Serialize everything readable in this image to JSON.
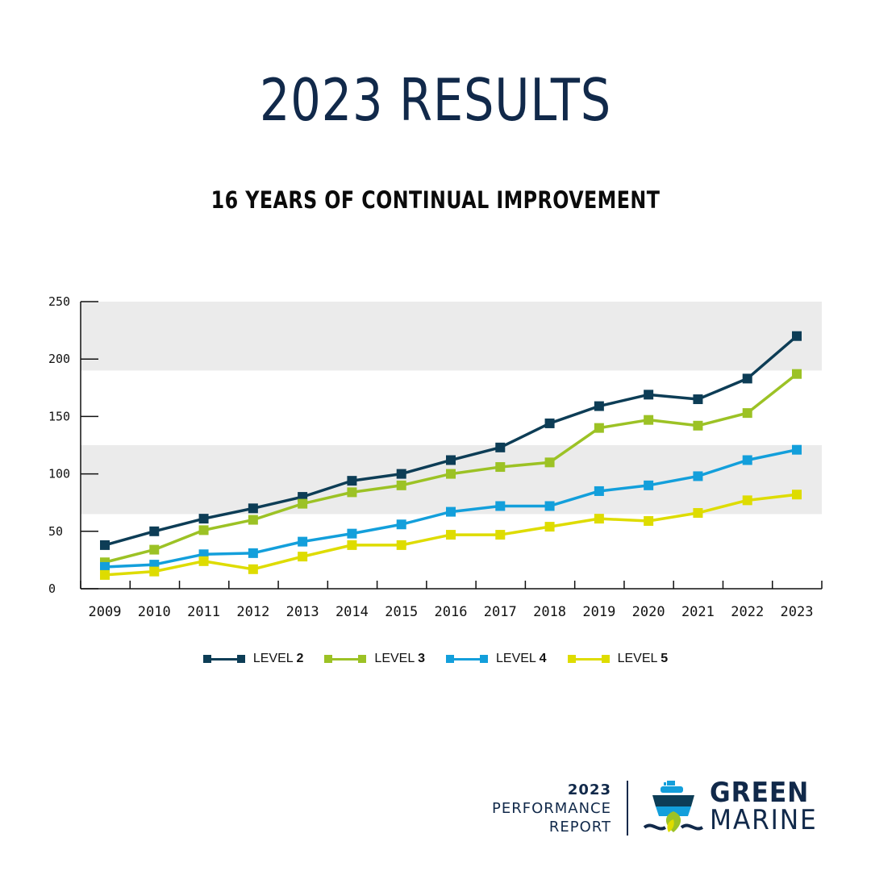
{
  "title": "2023 RESULTS",
  "subtitle": "16 YEARS OF CONTINUAL IMPROVEMENT",
  "chart_data": {
    "type": "line",
    "title": "16 YEARS OF CONTINUAL IMPROVEMENT",
    "xlabel": "",
    "ylabel": "",
    "ylim": [
      0,
      250
    ],
    "yticks": [
      0,
      50,
      100,
      150,
      200,
      250
    ],
    "categories": [
      "2009",
      "2010",
      "2011",
      "2012",
      "2013",
      "2014",
      "2015",
      "2016",
      "2017",
      "2018",
      "2019",
      "2020",
      "2021",
      "2022",
      "2023"
    ],
    "bands": [
      [
        65,
        125
      ],
      [
        190,
        250
      ]
    ],
    "series": [
      {
        "name": "LEVEL 2",
        "prefix": "LEVEL ",
        "level": "2",
        "color": "#0d3d56",
        "values": [
          38,
          50,
          61,
          70,
          80,
          94,
          100,
          112,
          123,
          144,
          159,
          169,
          165,
          183,
          220
        ]
      },
      {
        "name": "LEVEL 3",
        "prefix": "LEVEL ",
        "level": "3",
        "color": "#9cc225",
        "values": [
          23,
          34,
          51,
          60,
          74,
          84,
          90,
          100,
          106,
          110,
          140,
          147,
          142,
          153,
          187
        ]
      },
      {
        "name": "LEVEL 4",
        "prefix": "LEVEL ",
        "level": "4",
        "color": "#139fdb",
        "values": [
          19,
          21,
          30,
          31,
          41,
          48,
          56,
          67,
          72,
          72,
          85,
          90,
          98,
          112,
          121
        ]
      },
      {
        "name": "LEVEL 5",
        "prefix": "LEVEL ",
        "level": "5",
        "color": "#dedc00",
        "values": [
          12,
          15,
          24,
          17,
          28,
          38,
          38,
          47,
          47,
          54,
          61,
          59,
          66,
          77,
          82
        ]
      }
    ],
    "legend_position": "bottom"
  },
  "footer": {
    "report_year": "2023",
    "report_line1": "PERFORMANCE",
    "report_line2": "REPORT",
    "brand_line1": "GREEN",
    "brand_line2": "MARINE"
  }
}
